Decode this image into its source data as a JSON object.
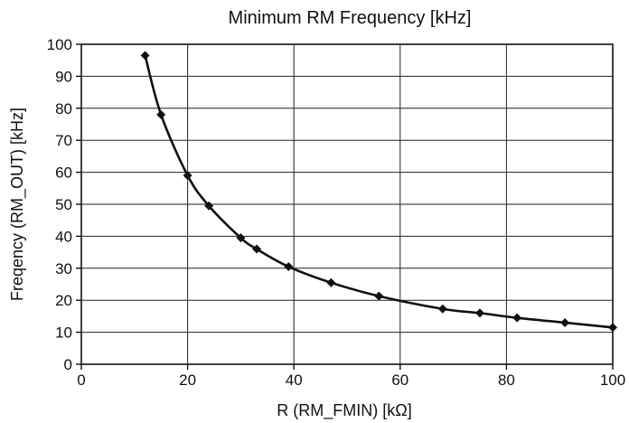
{
  "chart_data": {
    "type": "line",
    "title": "Minimum RM Frequency [kHz]",
    "xlabel": "R (RM_FMIN) [kΩ]",
    "ylabel": "Freqency (RM_OUT) [kHz]",
    "xlim": [
      0,
      100
    ],
    "ylim": [
      0,
      100
    ],
    "x_ticks": [
      0,
      20,
      40,
      60,
      80,
      100
    ],
    "y_ticks": [
      0,
      10,
      20,
      30,
      40,
      50,
      60,
      70,
      80,
      90,
      100
    ],
    "grid": true,
    "legend": "none",
    "series": [
      {
        "marker": "diamond",
        "color": "#111111",
        "x": [
          12,
          15,
          20,
          24,
          30,
          33,
          39,
          47,
          56,
          68,
          75,
          82,
          91,
          100
        ],
        "y": [
          96.5,
          78,
          59,
          49.5,
          39.5,
          36,
          30.5,
          25.5,
          21.3,
          17.3,
          16,
          14.5,
          13,
          11.5
        ]
      }
    ]
  }
}
